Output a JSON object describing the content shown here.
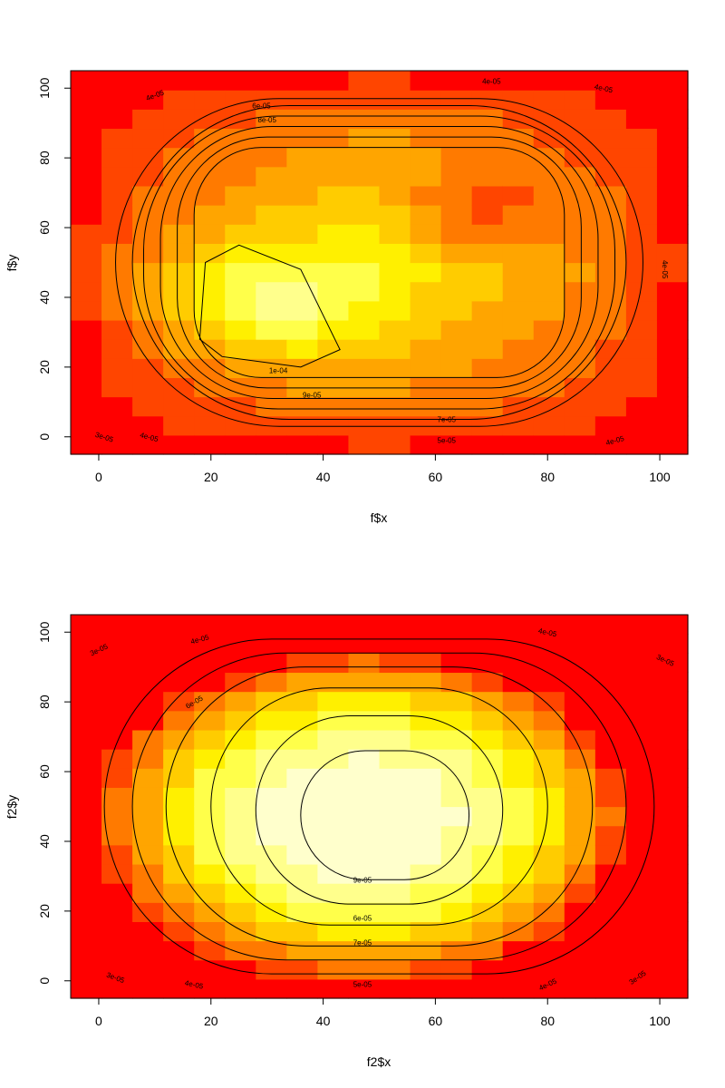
{
  "chart_data": [
    {
      "type": "heatmap",
      "title": "",
      "xlabel": "f$x",
      "ylabel": "f$y",
      "xlim": [
        -5,
        105
      ],
      "ylim": [
        -5,
        105
      ],
      "x_ticks": [
        "0",
        "20",
        "40",
        "60",
        "80",
        "100"
      ],
      "y_ticks": [
        "0",
        "20",
        "40",
        "60",
        "80",
        "100"
      ],
      "grid": false,
      "colormap": [
        "#FF0000",
        "#FF4500",
        "#FF7A00",
        "#FFA500",
        "#FFCC00",
        "#FFF000",
        "#FFFF4A",
        "#FFFF8C",
        "#FFFFCC"
      ],
      "field": {
        "x_range": [
          -5,
          105
        ],
        "y_range": [
          -5,
          105
        ],
        "nx": 20,
        "ny": 20,
        "peak_center": [
          30,
          38
        ],
        "peak_value": 0.000104,
        "base_value": 3e-05
      },
      "contour_labels": [
        "1e-04",
        "9e-05",
        "8e-05",
        "7e-05",
        "6e-05",
        "5e-05",
        "4e-05",
        "4e-05",
        "4e-05",
        "4e-05",
        "4e-05",
        "4e-05",
        "3e-05"
      ]
    },
    {
      "type": "heatmap",
      "title": "",
      "xlabel": "f2$x",
      "ylabel": "f2$y",
      "xlim": [
        -5,
        105
      ],
      "ylim": [
        -5,
        105
      ],
      "x_ticks": [
        "0",
        "20",
        "40",
        "60",
        "80",
        "100"
      ],
      "y_ticks": [
        "0",
        "20",
        "40",
        "60",
        "80",
        "100"
      ],
      "grid": false,
      "colormap": [
        "#FF0000",
        "#FF4500",
        "#FF7A00",
        "#FFA500",
        "#FFCC00",
        "#FFF000",
        "#FFFF4A",
        "#FFFF8C",
        "#FFFFCC"
      ],
      "field": {
        "x_range": [
          -5,
          105
        ],
        "y_range": [
          -5,
          105
        ],
        "nx": 20,
        "ny": 20,
        "peak_center": [
          47,
          47
        ],
        "peak_value": 9.35e-05,
        "base_value": 3e-05
      },
      "contour_labels": [
        "9e-05",
        "6e-05",
        "7e-05",
        "5e-05",
        "6e-05",
        "4e-05",
        "4e-05",
        "4e-05",
        "4e-05",
        "3e-05",
        "3e-05",
        "3e-05",
        "3e-05"
      ]
    }
  ]
}
